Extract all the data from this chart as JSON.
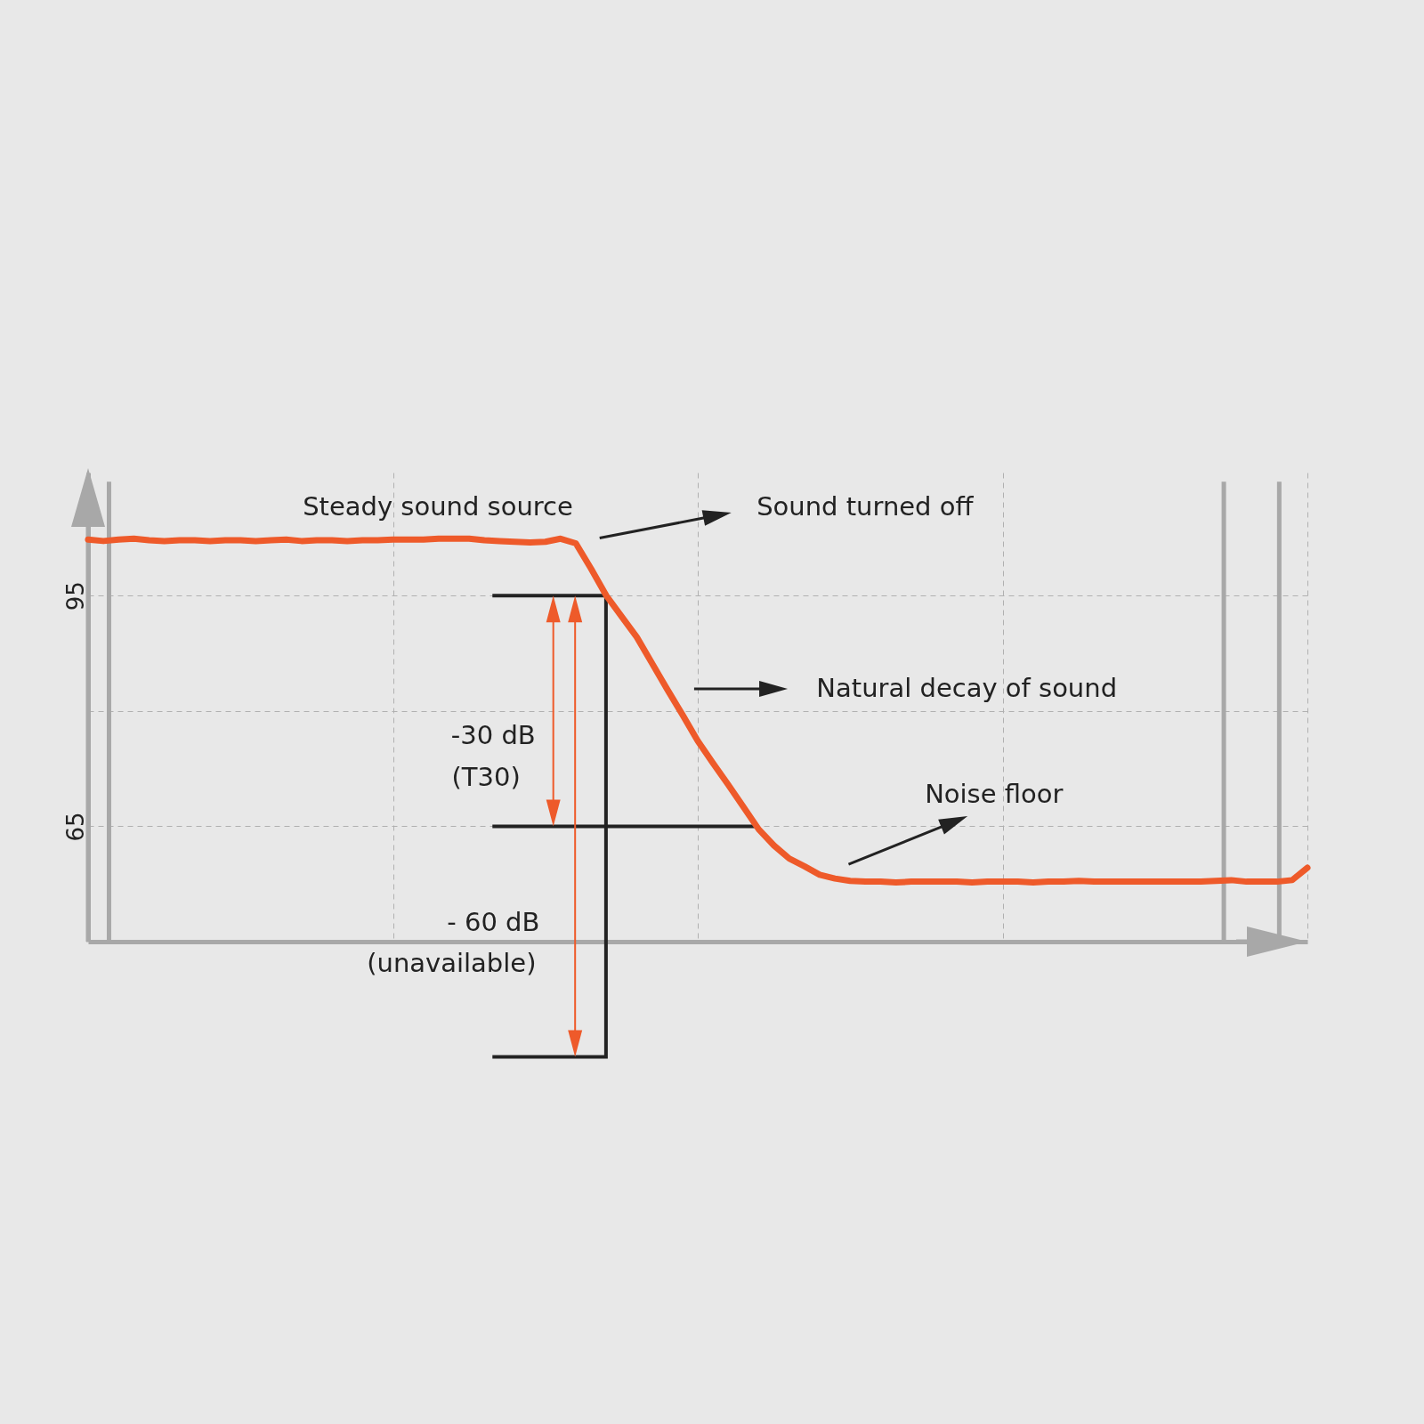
{
  "chart_data": {
    "type": "line",
    "ylim": [
      50,
      111
    ],
    "yticks": [
      95,
      {
        "value": 80,
        "label": null
      },
      65
    ],
    "categories": [
      null,
      null,
      null,
      null,
      null,
      null,
      null,
      null,
      null,
      null,
      null,
      null,
      null,
      null,
      null,
      null,
      null,
      null,
      null,
      null,
      null,
      null,
      null,
      null,
      null,
      null,
      null,
      null,
      null,
      null,
      null,
      null,
      null,
      null,
      null,
      null,
      null,
      null,
      null,
      null,
      null,
      null,
      null,
      null,
      null,
      null,
      null,
      null,
      null,
      null,
      null,
      null,
      null,
      null,
      null,
      null,
      null,
      null,
      null,
      null,
      null,
      null,
      null,
      null,
      null,
      null,
      null,
      null,
      null,
      null,
      null,
      null,
      null,
      null,
      null,
      null,
      null,
      null,
      null,
      null,
      null
    ],
    "tick_labels": "y",
    "grid": true,
    "marker": "none",
    "line_style": "solid",
    "series": [
      {
        "color": "#ee5a2a",
        "values": [
          102.3,
          102.1,
          102.3,
          102.4,
          102.2,
          102.1,
          102.2,
          102.2,
          102.1,
          102.2,
          102.2,
          102.1,
          102.2,
          102.3,
          102.1,
          102.2,
          102.2,
          102.1,
          102.2,
          102.2,
          102.3,
          102.3,
          102.3,
          102.4,
          102.4,
          102.4,
          102.2,
          102.1,
          102.0,
          101.9,
          102.0,
          102.4,
          101.8,
          98.5,
          95,
          92.3,
          89.6,
          86.2,
          82.8,
          79.5,
          76.1,
          73.2,
          70.4,
          67.5,
          64.6,
          62.5,
          60.8,
          59.8,
          58.7,
          58.2,
          57.9,
          57.8,
          57.8,
          57.7,
          57.8,
          57.8,
          57.8,
          57.8,
          57.7,
          57.8,
          57.8,
          57.8,
          57.7,
          57.8,
          57.8,
          57.9,
          57.8,
          57.8,
          57.8,
          57.8,
          57.8,
          57.8,
          57.8,
          57.8,
          57.9,
          58.0,
          57.8,
          57.8,
          57.8,
          58.0,
          59.6
        ]
      }
    ],
    "annotations": [
      "Steady sound source",
      "Sound turned off",
      "Natural decay of sound",
      "Noise floor",
      "-30 dB",
      "(T30)",
      "- 60 dB",
      "(unavailable)"
    ]
  }
}
